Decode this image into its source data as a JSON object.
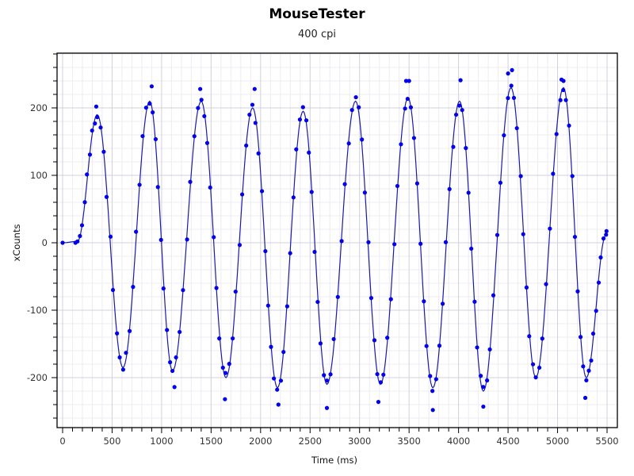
{
  "chart": {
    "title": "MouseTester",
    "subtitle": "400 cpi"
  },
  "chart_data": {
    "type": "scatter",
    "title": "MouseTester",
    "subtitle": "400 cpi",
    "xlabel": "Time (ms)",
    "ylabel": "xCounts",
    "xlim": [
      -50,
      5600
    ],
    "ylim": [
      -270,
      285
    ],
    "x_ticks": [
      0,
      500,
      1000,
      1500,
      2000,
      2500,
      3000,
      3500,
      4000,
      4500,
      5000,
      5500
    ],
    "y_ticks": [
      -200,
      -100,
      0,
      100,
      200
    ],
    "x_minor_step": 100,
    "y_minor_step": 20,
    "grid": true,
    "legend": null,
    "series": [
      {
        "name": "xCounts",
        "style": "points + smoothed line",
        "color": "#0000ee",
        "line_color": "#1a1aa8",
        "approx_model": "sinusoid, amplitude ~200-215, period ~525 ms, peaks near 350, 880, 1400, 1920, 2430, 2960, 3490, 4010, 4530, 5060 ms",
        "peaks": [
          {
            "x": 350,
            "y": 190
          },
          {
            "x": 880,
            "y": 210
          },
          {
            "x": 1400,
            "y": 210
          },
          {
            "x": 1920,
            "y": 200
          },
          {
            "x": 2430,
            "y": 195
          },
          {
            "x": 2960,
            "y": 210
          },
          {
            "x": 3490,
            "y": 215
          },
          {
            "x": 4010,
            "y": 210
          },
          {
            "x": 4530,
            "y": 230
          },
          {
            "x": 5060,
            "y": 230
          }
        ],
        "troughs": [
          {
            "x": 610,
            "y": -185
          },
          {
            "x": 1110,
            "y": -190
          },
          {
            "x": 1650,
            "y": -200
          },
          {
            "x": 2170,
            "y": -215
          },
          {
            "x": 2670,
            "y": -210
          },
          {
            "x": 3210,
            "y": -210
          },
          {
            "x": 3740,
            "y": -215
          },
          {
            "x": 4250,
            "y": -220
          },
          {
            "x": 4780,
            "y": -200
          },
          {
            "x": 5290,
            "y": -200
          }
        ],
        "outliers": [
          {
            "x": 340,
            "y": 202
          },
          {
            "x": 900,
            "y": 232
          },
          {
            "x": 1390,
            "y": 228
          },
          {
            "x": 1940,
            "y": 228
          },
          {
            "x": 3470,
            "y": 240
          },
          {
            "x": 3500,
            "y": 240
          },
          {
            "x": 4020,
            "y": 241
          },
          {
            "x": 4500,
            "y": 251
          },
          {
            "x": 4540,
            "y": 256
          },
          {
            "x": 5040,
            "y": 242
          },
          {
            "x": 5060,
            "y": 240
          },
          {
            "x": 1130,
            "y": -214
          },
          {
            "x": 1640,
            "y": -232
          },
          {
            "x": 2180,
            "y": -240
          },
          {
            "x": 2670,
            "y": -245
          },
          {
            "x": 3190,
            "y": -236
          },
          {
            "x": 3740,
            "y": -248
          },
          {
            "x": 4250,
            "y": -243
          },
          {
            "x": 5280,
            "y": -230
          }
        ],
        "start_points": [
          {
            "x": 0,
            "y": 0
          },
          {
            "x": 130,
            "y": 0
          },
          {
            "x": 150,
            "y": 2
          }
        ],
        "end_point": {
          "x": 5490,
          "y": 12
        }
      }
    ]
  }
}
